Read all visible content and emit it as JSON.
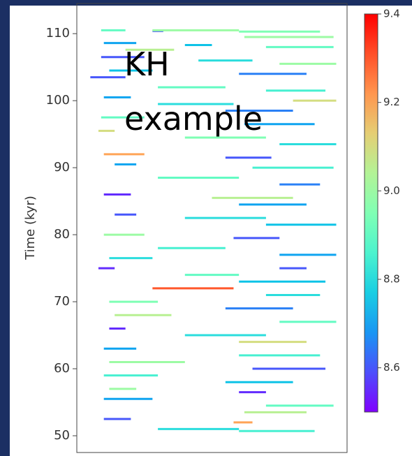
{
  "chart_data": {
    "type": "segments",
    "ylabel": "Time (kyr)",
    "annotation": "KH\nexample",
    "ylim": [
      47.5,
      114.5
    ],
    "yticks": [
      50,
      60,
      70,
      80,
      90,
      100,
      110
    ],
    "xlim": [
      0,
      100
    ],
    "clim": [
      8.5,
      9.4
    ],
    "cticks": [
      8.6,
      8.8,
      {
        "value": 9.0,
        "label": "9.0"
      },
      9.2,
      9.4
    ],
    "colormap": "rainbow",
    "segments": [
      [
        110.5,
        9,
        18,
        8.9
      ],
      [
        110.4,
        28,
        32,
        8.6
      ],
      [
        110.5,
        28,
        60,
        9.0
      ],
      [
        110.3,
        60,
        90,
        8.95
      ],
      [
        109.5,
        62,
        95,
        9.0
      ],
      [
        108.6,
        10,
        22,
        8.7
      ],
      [
        108.3,
        40,
        50,
        8.75
      ],
      [
        108,
        70,
        95,
        8.9
      ],
      [
        107.6,
        18,
        36,
        9.05
      ],
      [
        106.5,
        9,
        25,
        8.6
      ],
      [
        106,
        45,
        65,
        8.8
      ],
      [
        105.5,
        75,
        96,
        9.0
      ],
      [
        104.5,
        12,
        28,
        8.75
      ],
      [
        104,
        60,
        85,
        8.65
      ],
      [
        103.5,
        5,
        18,
        8.6
      ],
      [
        102,
        30,
        55,
        8.9
      ],
      [
        101.5,
        70,
        92,
        8.85
      ],
      [
        100.5,
        10,
        20,
        8.7
      ],
      [
        100,
        80,
        96,
        9.1
      ],
      [
        99.5,
        30,
        58,
        8.8
      ],
      [
        98.5,
        55,
        80,
        8.65
      ],
      [
        97.5,
        9,
        25,
        8.9
      ],
      [
        96.5,
        62,
        88,
        8.7
      ],
      [
        95.5,
        8,
        14,
        9.1
      ],
      [
        94.5,
        40,
        70,
        8.95
      ],
      [
        93.5,
        75,
        96,
        8.8
      ],
      [
        92,
        10,
        25,
        9.2
      ],
      [
        91.5,
        55,
        72,
        8.6
      ],
      [
        90.5,
        14,
        22,
        8.7
      ],
      [
        90,
        65,
        95,
        8.85
      ],
      [
        88.5,
        30,
        60,
        8.9
      ],
      [
        87.5,
        75,
        90,
        8.65
      ],
      [
        86,
        10,
        20,
        8.55
      ],
      [
        85.5,
        50,
        80,
        9.05
      ],
      [
        84.5,
        60,
        85,
        8.7
      ],
      [
        83,
        14,
        22,
        8.6
      ],
      [
        82.5,
        40,
        70,
        8.8
      ],
      [
        81.5,
        70,
        96,
        8.75
      ],
      [
        80,
        10,
        25,
        9.0
      ],
      [
        79.5,
        58,
        75,
        8.6
      ],
      [
        78,
        30,
        55,
        8.85
      ],
      [
        77,
        75,
        96,
        8.7
      ],
      [
        76.5,
        12,
        28,
        8.8
      ],
      [
        75,
        8,
        14,
        8.55
      ],
      [
        75,
        75,
        85,
        8.6
      ],
      [
        74,
        40,
        60,
        8.9
      ],
      [
        73,
        60,
        92,
        8.75
      ],
      [
        72,
        28,
        58,
        9.3
      ],
      [
        71,
        70,
        90,
        8.8
      ],
      [
        70,
        12,
        30,
        8.95
      ],
      [
        69,
        55,
        80,
        8.65
      ],
      [
        68,
        14,
        35,
        9.05
      ],
      [
        67,
        75,
        96,
        8.9
      ],
      [
        66,
        12,
        18,
        8.55
      ],
      [
        65,
        40,
        70,
        8.8
      ],
      [
        64,
        60,
        85,
        9.1
      ],
      [
        63,
        10,
        22,
        8.7
      ],
      [
        62,
        60,
        90,
        8.85
      ],
      [
        61,
        12,
        40,
        9.0
      ],
      [
        60,
        65,
        92,
        8.6
      ],
      [
        59,
        10,
        30,
        8.85
      ],
      [
        58,
        55,
        80,
        8.75
      ],
      [
        57,
        12,
        22,
        9.0
      ],
      [
        56.5,
        60,
        70,
        8.55
      ],
      [
        55.5,
        10,
        28,
        8.7
      ],
      [
        54.5,
        70,
        95,
        8.9
      ],
      [
        53.5,
        62,
        85,
        9.05
      ],
      [
        52.5,
        10,
        20,
        8.6
      ],
      [
        52,
        58,
        65,
        9.2
      ],
      [
        51,
        30,
        60,
        8.8
      ],
      [
        50.7,
        60,
        88,
        8.85
      ]
    ]
  }
}
